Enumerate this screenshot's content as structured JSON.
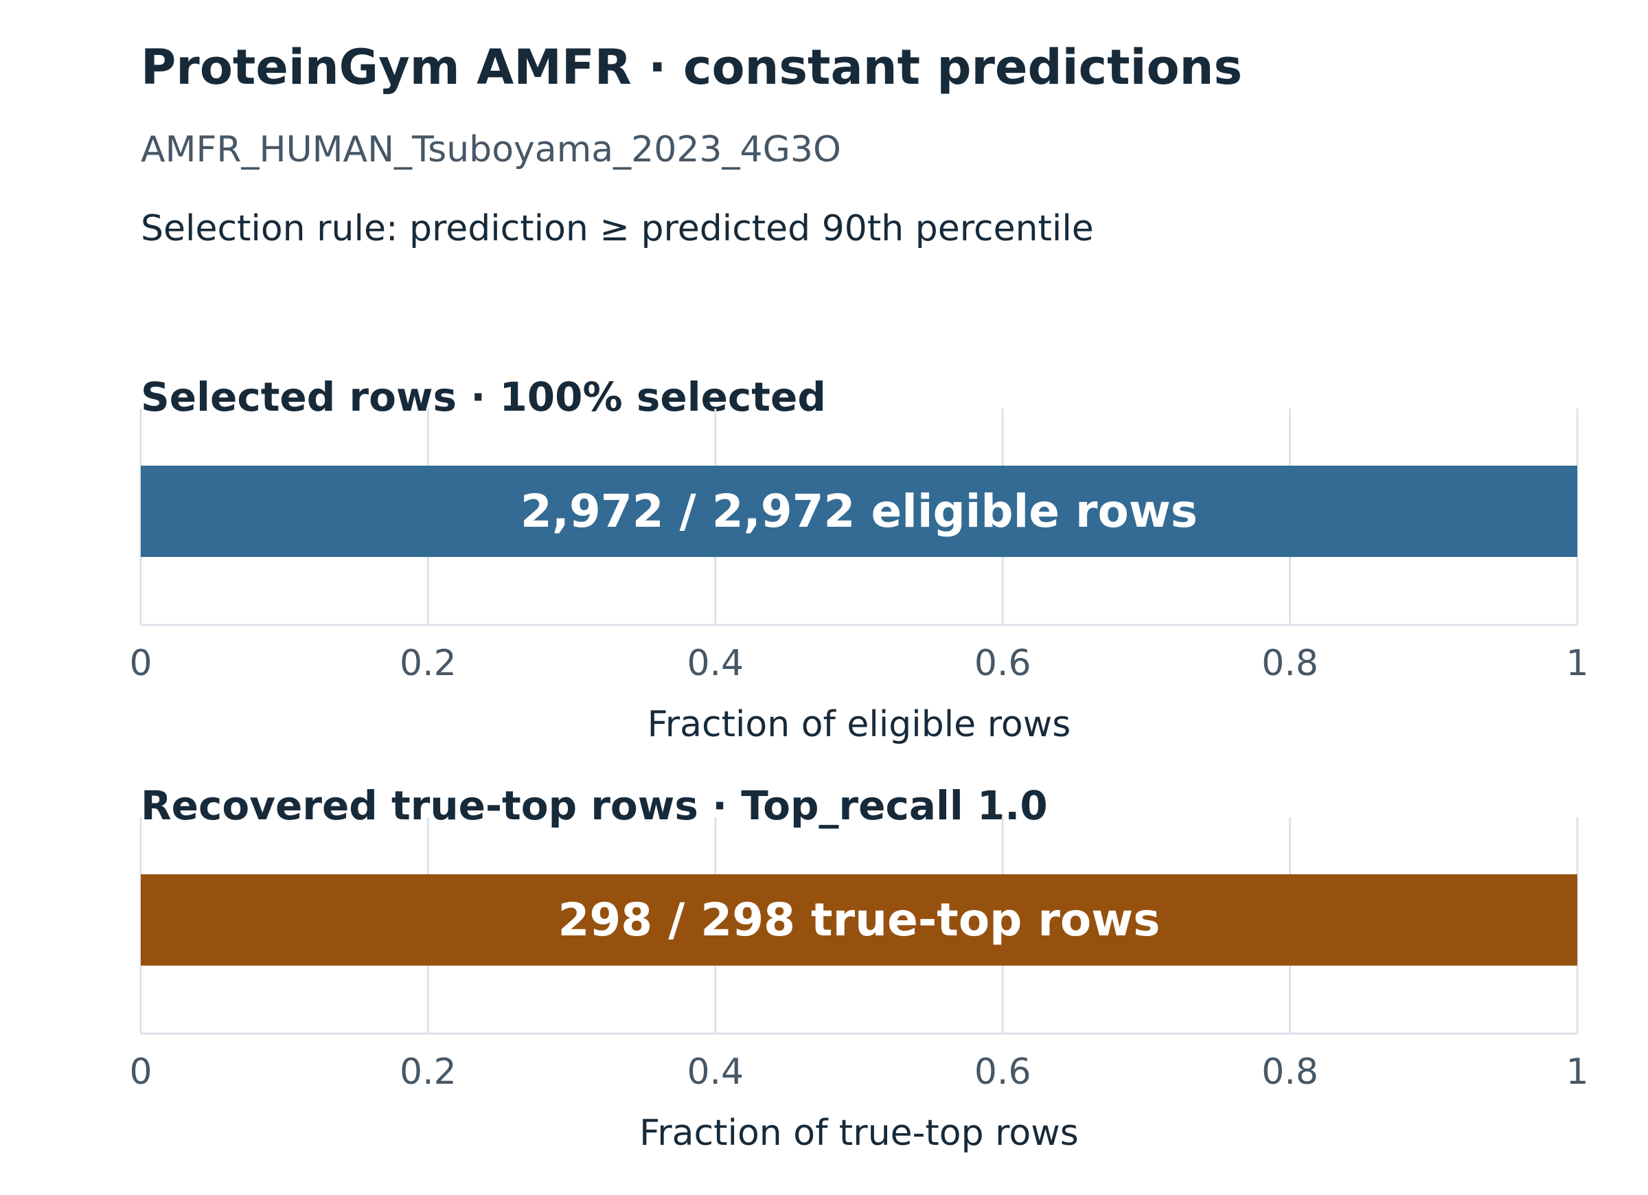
{
  "title": "ProteinGym AMFR · constant predictions",
  "subtitle": "AMFR_HUMAN_Tsuboyama_2023_4G3O",
  "selection_rule": "Selection rule: prediction ≥ predicted 90th percentile",
  "chart_data": [
    {
      "type": "bar",
      "orientation": "horizontal",
      "title": "Selected rows · 100% selected",
      "xlabel": "Fraction of eligible rows",
      "ylabel": "",
      "xlim": [
        0,
        1
      ],
      "x_ticks": [
        "0",
        "0.2",
        "0.4",
        "0.6",
        "0.8",
        "1"
      ],
      "grid": true,
      "values": [
        1.0
      ],
      "bar_label": "2,972 / 2,972 eligible rows",
      "color": "#336b94"
    },
    {
      "type": "bar",
      "orientation": "horizontal",
      "title": "Recovered true-top rows · Top_recall 1.0",
      "xlabel": "Fraction of true-top rows",
      "ylabel": "",
      "xlim": [
        0,
        1
      ],
      "x_ticks": [
        "0",
        "0.2",
        "0.4",
        "0.6",
        "0.8",
        "1"
      ],
      "grid": true,
      "values": [
        1.0
      ],
      "bar_label": "298 / 298 true-top rows",
      "color": "#96510f"
    }
  ]
}
